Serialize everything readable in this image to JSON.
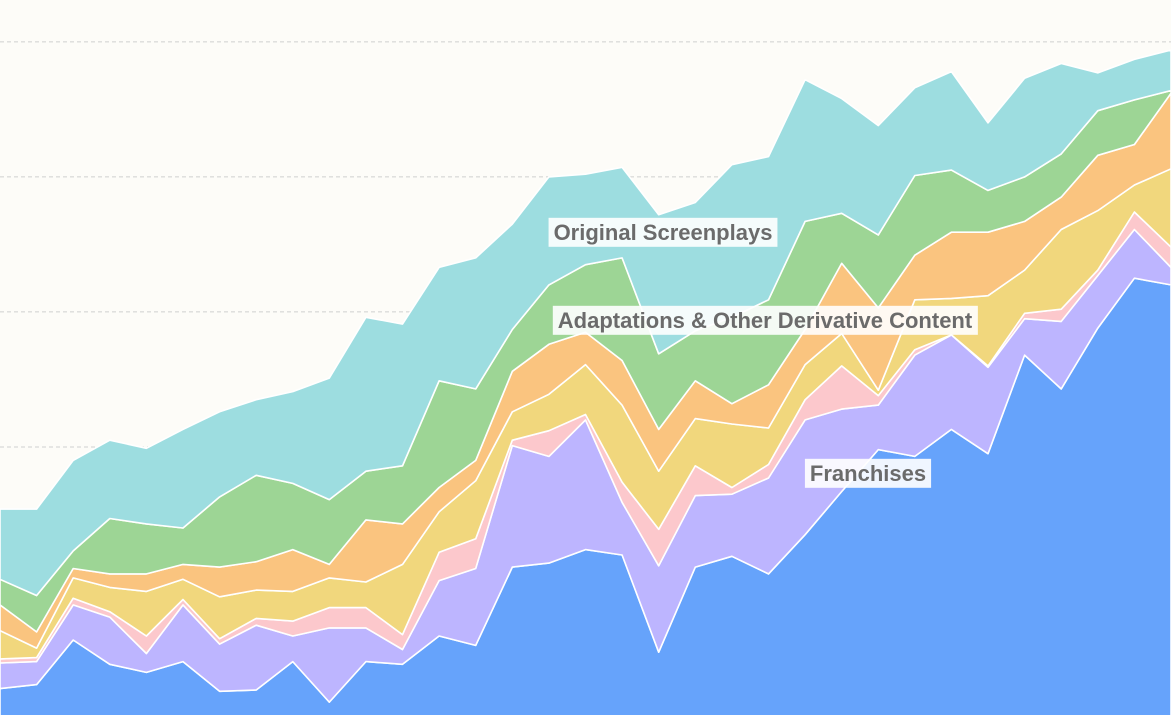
{
  "chart_data": {
    "type": "stacked-area",
    "categories": [
      null,
      null,
      null,
      null,
      null,
      null,
      null,
      null,
      null,
      null,
      null,
      null,
      null,
      null,
      null,
      null,
      null,
      null,
      null,
      null,
      null,
      null,
      null,
      null,
      null,
      null,
      null,
      null,
      null,
      null,
      null,
      null,
      null
    ],
    "ylim": [
      0,
      5.31
    ],
    "yticks": [
      1,
      2,
      3,
      4,
      5
    ],
    "grid": true,
    "series": [
      {
        "name": "Franchises",
        "color": "#66a3fb",
        "values": [
          0.21,
          0.24,
          0.57,
          0.39,
          0.33,
          0.41,
          0.19,
          0.2,
          0.41,
          0.11,
          0.41,
          0.39,
          0.6,
          0.53,
          1.11,
          1.14,
          1.24,
          1.2,
          0.48,
          1.11,
          1.19,
          1.06,
          1.35,
          1.67,
          1.98,
          1.93,
          2.13,
          1.95,
          2.68,
          2.43,
          2.88,
          3.25,
          3.2
        ]
      },
      {
        "name": null,
        "color": "#bdb5ff",
        "values": [
          0.19,
          0.17,
          0.26,
          0.35,
          0.14,
          0.42,
          0.35,
          0.48,
          0.19,
          0.55,
          0.25,
          0.11,
          0.41,
          0.57,
          0.9,
          0.79,
          0.96,
          0.39,
          0.64,
          0.53,
          0.46,
          0.71,
          0.85,
          0.61,
          0.33,
          0.75,
          0.7,
          0.64,
          0.27,
          0.5,
          0.39,
          0.36,
          0.13
        ]
      },
      {
        "name": null,
        "color": "#fcc8cc",
        "values": [
          0.03,
          0.03,
          0.05,
          0.04,
          0.13,
          0.04,
          0.04,
          0.05,
          0.11,
          0.15,
          0.15,
          0.11,
          0.21,
          0.22,
          0.04,
          0.19,
          0.04,
          0.15,
          0.27,
          0.22,
          0.05,
          0.1,
          0.15,
          0.32,
          0.07,
          0.04,
          0,
          0.01,
          0.04,
          0.09,
          0.04,
          0.13,
          0.15
        ]
      },
      {
        "name": null,
        "color": "#f1d77d",
        "values": [
          0.21,
          0.07,
          0.15,
          0.18,
          0.33,
          0.15,
          0.31,
          0.21,
          0.22,
          0.22,
          0.19,
          0.52,
          0.3,
          0.43,
          0.21,
          0.27,
          0.37,
          0.57,
          0.43,
          0.35,
          0.47,
          0.27,
          0.26,
          0.24,
          0.04,
          0.37,
          0.27,
          0.52,
          0.32,
          0.59,
          0.44,
          0.2,
          0.58
        ]
      },
      {
        "name": null,
        "color": "#fac47f",
        "values": [
          0.19,
          0.12,
          0.07,
          0.1,
          0.13,
          0.11,
          0.22,
          0.21,
          0.31,
          0.1,
          0.46,
          0.3,
          0.18,
          0.15,
          0.3,
          0.37,
          0.24,
          0.33,
          0.31,
          0.28,
          0.15,
          0.32,
          0.26,
          0.52,
          0.61,
          0.33,
          0.49,
          0.47,
          0.36,
          0.24,
          0.41,
          0.3,
          0.56
        ]
      },
      {
        "name": "Adaptations & Other Derivative Content",
        "color": "#9dd595",
        "values": [
          0.19,
          0.27,
          0.13,
          0.41,
          0.37,
          0.27,
          0.52,
          0.64,
          0.49,
          0.48,
          0.36,
          0.43,
          0.79,
          0.53,
          0.31,
          0.44,
          0.5,
          0.76,
          0.56,
          0.37,
          0.64,
          0.63,
          0.8,
          0.37,
          0.54,
          0.59,
          0.46,
          0.31,
          0.33,
          0.32,
          0.33,
          0.33,
          0.02
        ]
      },
      {
        "name": "Original Screenplays",
        "color": "#9ddde0",
        "values": [
          0.52,
          0.64,
          0.67,
          0.58,
          0.56,
          0.73,
          0.63,
          0.56,
          0.68,
          0.9,
          1.14,
          1.05,
          0.84,
          0.97,
          0.78,
          0.8,
          0.67,
          0.67,
          1.03,
          0.95,
          1.13,
          1.06,
          1.05,
          0.85,
          0.81,
          0.65,
          0.73,
          0.5,
          0.73,
          0.67,
          0.28,
          0.3,
          0.3
        ]
      }
    ]
  }
}
